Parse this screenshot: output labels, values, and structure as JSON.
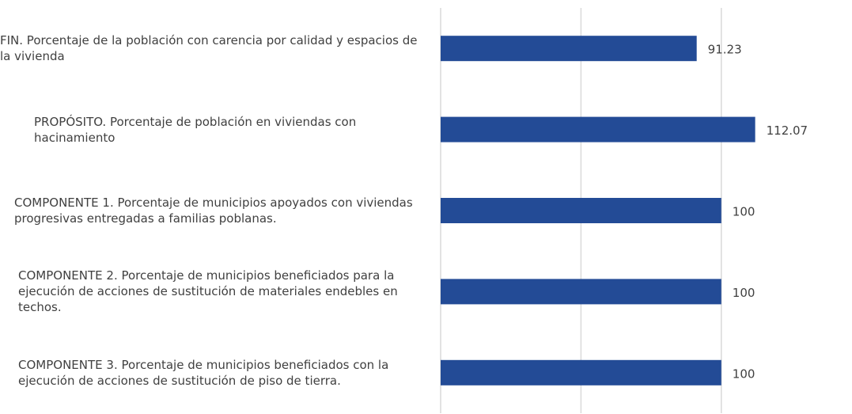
{
  "chart_data": {
    "type": "bar",
    "orientation": "horizontal",
    "categories": [
      "FIN. Porcentaje de la población con carencia por calidad y espacios de la vivienda",
      "PROPÓSITO. Porcentaje de población en viviendas con hacinamiento",
      "COMPONENTE 1. Porcentaje de municipios apoyados con viviendas progresivas entregadas a familias poblanas.",
      "COMPONENTE 2. Porcentaje de municipios beneficiados para la ejecución de acciones de sustitución de materiales endebles en techos.",
      "COMPONENTE 3. Porcentaje de municipios beneficiados con la ejecución de acciones de sustitución de piso de tierra."
    ],
    "values": [
      91.23,
      112.07,
      100,
      100,
      100
    ],
    "color": "#234b96",
    "xlim": [
      0,
      146
    ],
    "xticks": [
      0,
      50,
      100
    ],
    "grid": true
  }
}
